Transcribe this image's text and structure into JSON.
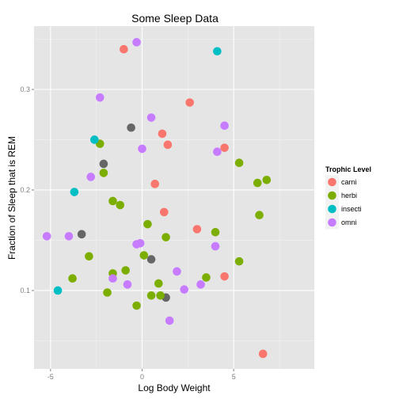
{
  "chart_data": {
    "type": "scatter",
    "title": "Some Sleep Data",
    "xlabel": "Log Body Weight",
    "ylabel": "Fraction of Sleep that is REM",
    "xlim": [
      -5.9,
      9.4
    ],
    "ylim": [
      0.022,
      0.363
    ],
    "x_ticks": [
      -5,
      0,
      5
    ],
    "x_tick_labels": [
      "-5",
      "0",
      "5"
    ],
    "y_ticks": [
      0.1,
      0.2,
      0.3
    ],
    "y_tick_labels": [
      "0.1",
      "0.2",
      "0.3"
    ],
    "grid": true,
    "legend": {
      "title": "Trophic Level",
      "position": "right"
    },
    "point_color_na": "#666666",
    "series": [
      {
        "name": "carni",
        "color": "#F8766D",
        "points": [
          [
            -1.0,
            0.34
          ],
          [
            2.6,
            0.287
          ],
          [
            1.1,
            0.256
          ],
          [
            1.4,
            0.245
          ],
          [
            4.5,
            0.242
          ],
          [
            0.7,
            0.206
          ],
          [
            1.2,
            0.178
          ],
          [
            3.0,
            0.161
          ],
          [
            4.5,
            0.114
          ],
          [
            6.6,
            0.037
          ]
        ]
      },
      {
        "name": "herbi",
        "color": "#7CAE00",
        "points": [
          [
            -2.3,
            0.246
          ],
          [
            5.3,
            0.227
          ],
          [
            -2.1,
            0.217
          ],
          [
            6.8,
            0.21
          ],
          [
            6.3,
            0.207
          ],
          [
            -1.6,
            0.189
          ],
          [
            -1.2,
            0.185
          ],
          [
            6.4,
            0.175
          ],
          [
            0.3,
            0.166
          ],
          [
            4.0,
            0.158
          ],
          [
            1.3,
            0.153
          ],
          [
            0.1,
            0.135
          ],
          [
            -2.9,
            0.134
          ],
          [
            5.3,
            0.129
          ],
          [
            -0.9,
            0.12
          ],
          [
            -1.6,
            0.117
          ],
          [
            3.5,
            0.113
          ],
          [
            -3.8,
            0.112
          ],
          [
            0.9,
            0.107
          ],
          [
            -1.9,
            0.098
          ],
          [
            0.5,
            0.095
          ],
          [
            1.0,
            0.095
          ],
          [
            -0.3,
            0.085
          ]
        ]
      },
      {
        "name": "insecti",
        "color": "#00BFC4",
        "points": [
          [
            4.1,
            0.338
          ],
          [
            -2.6,
            0.25
          ],
          [
            -3.7,
            0.198
          ],
          [
            -4.6,
            0.1
          ]
        ]
      },
      {
        "name": "omni",
        "color": "#C77CFF",
        "points": [
          [
            -0.3,
            0.347
          ],
          [
            -2.3,
            0.292
          ],
          [
            0.5,
            0.272
          ],
          [
            4.5,
            0.264
          ],
          [
            0.0,
            0.241
          ],
          [
            4.1,
            0.238
          ],
          [
            -2.8,
            0.213
          ],
          [
            -5.2,
            0.154
          ],
          [
            -4.0,
            0.154
          ],
          [
            -0.1,
            0.147
          ],
          [
            -0.3,
            0.146
          ],
          [
            4.0,
            0.144
          ],
          [
            1.9,
            0.119
          ],
          [
            -1.6,
            0.112
          ],
          [
            -0.8,
            0.106
          ],
          [
            3.2,
            0.106
          ],
          [
            2.3,
            0.101
          ],
          [
            1.5,
            0.07
          ]
        ]
      }
    ],
    "unlabeled_points": [
      [
        -0.6,
        0.262
      ],
      [
        -2.1,
        0.226
      ],
      [
        -3.3,
        0.156
      ],
      [
        0.5,
        0.131
      ],
      [
        1.3,
        0.093
      ]
    ]
  }
}
